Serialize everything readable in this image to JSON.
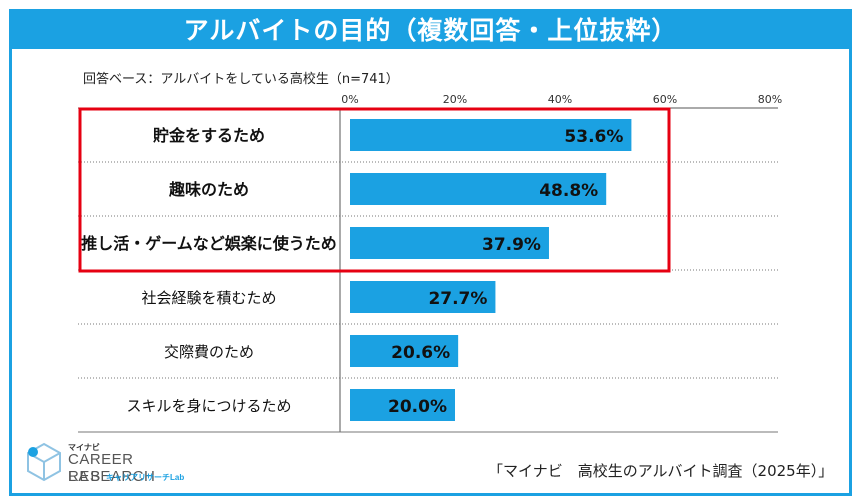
{
  "title": "アルバイトの目的（複数回答・上位抜粋）",
  "base_note": "回答ベース：アルバイトをしている高校生（n=741）",
  "source": "「マイナビ　高校生のアルバイト調査（2025年）」",
  "logo": {
    "brand_small": "マイナビ",
    "line1": "CAREER RESEARCH",
    "line2": "LAB",
    "sub": "キャリアリサーチLab"
  },
  "colors": {
    "bar": "#1ba1e2",
    "header": "#1ba1e2",
    "highlight": "#e60012"
  },
  "chart_data": {
    "type": "bar",
    "orientation": "horizontal",
    "categories": [
      "貯金をするため",
      "趣味のため",
      "推し活・ゲームなど娯楽に使うため",
      "社会経験を積むため",
      "交際費のため",
      "スキルを身につけるため"
    ],
    "values": [
      53.6,
      48.8,
      37.9,
      27.7,
      20.6,
      20.0
    ],
    "value_labels": [
      "53.6%",
      "48.8%",
      "37.9%",
      "27.7%",
      "20.6%",
      "20.0%"
    ],
    "bold_categories": [
      0,
      1,
      2
    ],
    "highlighted_categories": [
      0,
      1,
      2
    ],
    "xlim": [
      0,
      80
    ],
    "ticks": [
      0,
      20,
      40,
      60,
      80
    ],
    "tick_labels": [
      "0%",
      "20%",
      "40%",
      "60%",
      "80%"
    ],
    "unit": "%"
  }
}
